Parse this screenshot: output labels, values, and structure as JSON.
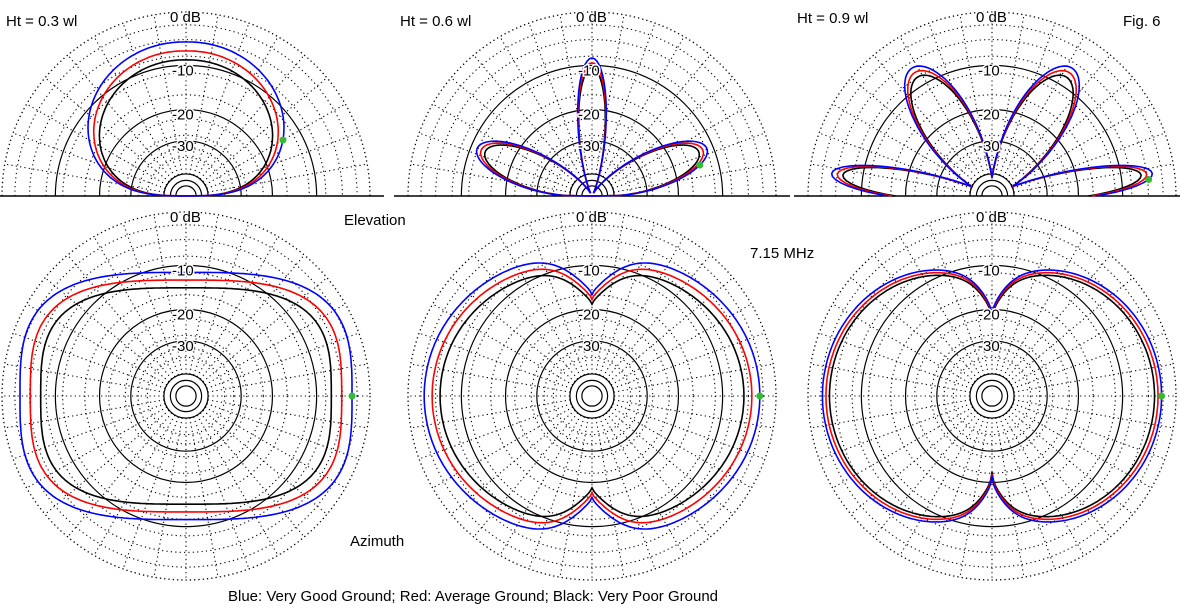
{
  "figure": {
    "fig_label": "Fig. 6",
    "elevation_label": "Elevation",
    "azimuth_label": "Azimuth",
    "frequency": "7.15 MHz",
    "caption": "Blue: Very Good Ground; Red: Average Ground; Black: Very Poor Ground"
  },
  "chart_data": {
    "type": "polar",
    "grid": true,
    "ring_labels": [
      "0 dB",
      "-10",
      "-20",
      "-30"
    ],
    "ring_levels_db": [
      0,
      -10,
      -20,
      -30
    ],
    "series_colors": {
      "very_good": "#0000ff",
      "average": "#ff0000",
      "very_poor": "#000000"
    },
    "marker_color": "#33bb33",
    "series": [
      {
        "name": "Very Good Ground",
        "color": "#0000ff"
      },
      {
        "name": "Average Ground",
        "color": "#ff0000"
      },
      {
        "name": "Very Poor Ground",
        "color": "#000000"
      }
    ],
    "plots": [
      {
        "view": "elevation",
        "height_label": "Ht = 0.3 wl",
        "height_wl": 0.3
      },
      {
        "view": "elevation",
        "height_label": "Ht = 0.6 wl",
        "height_wl": 0.6
      },
      {
        "view": "elevation",
        "height_label": "Ht = 0.9 wl",
        "height_wl": 0.9
      },
      {
        "view": "azimuth",
        "height_wl": 0.3
      },
      {
        "view": "azimuth",
        "height_wl": 0.6
      },
      {
        "view": "azimuth",
        "height_wl": 0.9
      }
    ]
  }
}
